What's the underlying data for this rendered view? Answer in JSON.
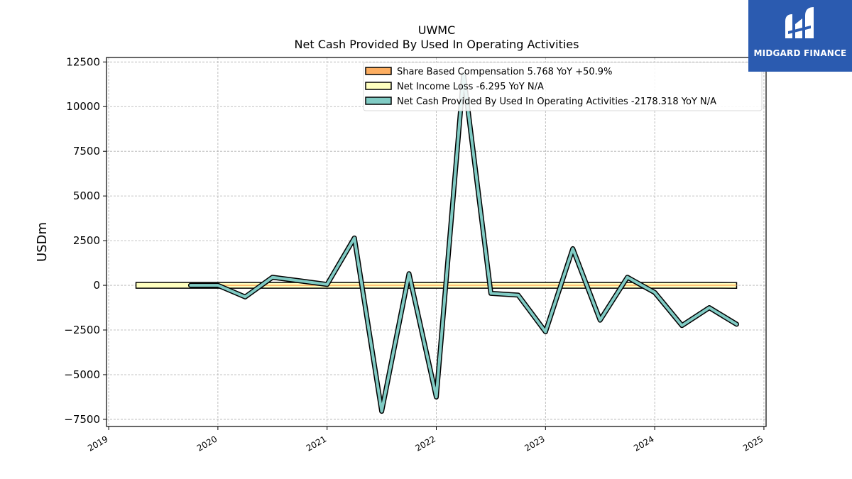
{
  "chart_data": {
    "type": "line",
    "title": "UWMC",
    "subtitle": "Net Cash Provided By Used In Operating Activities",
    "ylabel": "USDm",
    "xlabel": "",
    "ylim": [
      -7900,
      12750
    ],
    "xlim": [
      2018.98,
      2025.02
    ],
    "yticks": [
      -7500,
      -5000,
      -2500,
      0,
      2500,
      5000,
      7500,
      10000,
      12500
    ],
    "ytick_labels": [
      "−7500",
      "−5000",
      "−2500",
      "0",
      "2500",
      "5000",
      "7500",
      "10000",
      "12500"
    ],
    "xticks": [
      2019,
      2020,
      2021,
      2022,
      2023,
      2024,
      2025
    ],
    "xtick_labels": [
      "2019",
      "2020",
      "2021",
      "2022",
      "2023",
      "2024",
      "2025"
    ],
    "grid": true,
    "legend_position": "top-right",
    "series": [
      {
        "name": "Share Based Compensation  5.768 YoY +50.9%",
        "color": "#fdae61",
        "x": [
          2019.75,
          2020.0,
          2020.25,
          2020.5,
          2020.75,
          2021.0,
          2021.25,
          2021.5,
          2021.75,
          2022.0,
          2022.25,
          2022.5,
          2022.75,
          2023.0,
          2023.25,
          2023.5,
          2023.75,
          2024.0,
          2024.25,
          2024.5,
          2024.75
        ],
        "values": [
          0,
          0,
          0,
          0,
          0,
          0,
          2,
          3,
          4,
          4,
          4,
          4,
          4,
          4,
          4,
          4,
          4,
          4,
          4,
          4,
          6
        ]
      },
      {
        "name": "Net Income Loss  -6.295 YoY N/A",
        "color": "#ffffbf",
        "x": [
          2019.25,
          2019.5,
          2019.75,
          2020.0,
          2020.25,
          2020.5,
          2020.75,
          2021.0,
          2021.25,
          2021.5,
          2021.75,
          2022.0,
          2022.25,
          2022.5,
          2022.75,
          2023.0,
          2023.25,
          2023.5,
          2023.75,
          2024.0,
          2024.25,
          2024.5,
          2024.75
        ],
        "values": [
          0,
          0,
          0,
          0,
          0,
          0,
          0,
          0,
          0,
          0,
          0,
          0,
          0,
          0,
          0,
          0,
          0,
          0,
          0,
          0,
          0,
          0,
          -6
        ],
        "band_half_height": 160
      },
      {
        "name": "Net Cash Provided By Used In Operating Activities  -2178.318 YoY N/A",
        "color": "#80cbc4",
        "x": [
          2019.75,
          2020.0,
          2020.25,
          2020.5,
          2020.75,
          2021.0,
          2021.25,
          2021.5,
          2021.75,
          2022.0,
          2022.25,
          2022.5,
          2022.75,
          2023.0,
          2023.25,
          2023.5,
          2023.75,
          2024.0,
          2024.25,
          2024.5,
          2024.75
        ],
        "values": [
          0,
          0,
          -650,
          450,
          250,
          50,
          2650,
          -7050,
          650,
          -6250,
          11800,
          -450,
          -550,
          -2600,
          2050,
          -1950,
          450,
          -400,
          -2250,
          -1250,
          -2178
        ]
      }
    ]
  },
  "logo": {
    "text": "MIDGARD FINANCE"
  }
}
